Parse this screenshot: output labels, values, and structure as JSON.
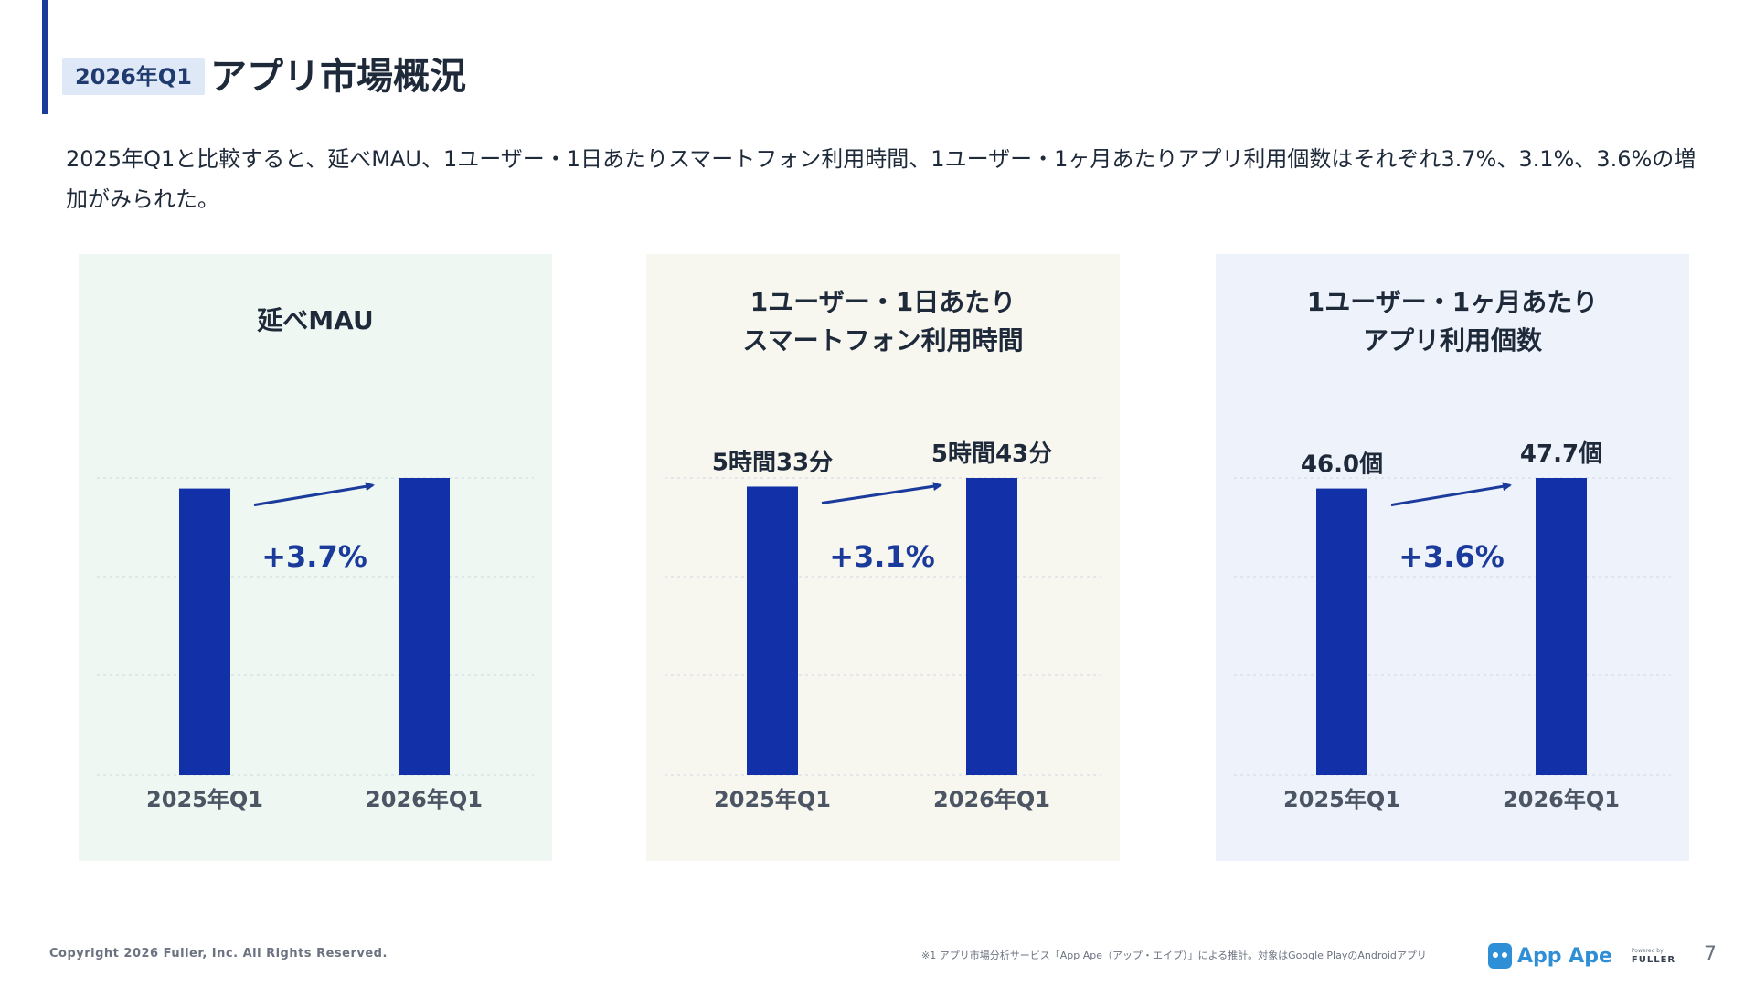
{
  "header": {
    "badge": "2026年Q1",
    "title": "アプリ市場概況"
  },
  "summary": "2025年Q1と比較すると、延べMAU、1ユーザー・1日あたりスマートフォン利用時間、1ユーザー・1ヶ月あたりアプリ利用個数はそれぞれ3.7%、3.1%、3.6%の増加がみられた。",
  "colors": {
    "bar": "#1230a8",
    "arrow": "#1a3a9c",
    "panel_green": "#eef7f2",
    "panel_beige": "#f7f6ef",
    "panel_blue": "#eef2fa"
  },
  "chart_data": [
    {
      "type": "bar",
      "title_lines": [
        "延べMAU"
      ],
      "categories": [
        "2025年Q1",
        "2026年Q1"
      ],
      "values": [
        100,
        103.7
      ],
      "value_labels": [
        "",
        ""
      ],
      "change_label": "+3.7%",
      "grid": true
    },
    {
      "type": "bar",
      "title_lines": [
        "1ユーザー・1日あたり",
        "スマートフォン利用時間"
      ],
      "categories": [
        "2025年Q1",
        "2026年Q1"
      ],
      "values": [
        333,
        343
      ],
      "value_labels": [
        "5時間33分",
        "5時間43分"
      ],
      "change_label": "+3.1%",
      "grid": true
    },
    {
      "type": "bar",
      "title_lines": [
        "1ユーザー・1ヶ月あたり",
        "アプリ利用個数"
      ],
      "categories": [
        "2025年Q1",
        "2026年Q1"
      ],
      "values": [
        46.0,
        47.7
      ],
      "value_labels": [
        "46.0個",
        "47.7個"
      ],
      "change_label": "+3.6%",
      "grid": true
    }
  ],
  "footer": {
    "copyright": "Copyright 2026 Fuller, Inc. All Rights Reserved.",
    "note": "※1 アプリ市場分析サービス「App Ape（アップ・エイプ）」による推計。対象はGoogle PlayのAndroidアプリ",
    "logo_text": "App Ape",
    "powered_by": "Powered by",
    "company": "FULLER",
    "page_number": "7"
  }
}
